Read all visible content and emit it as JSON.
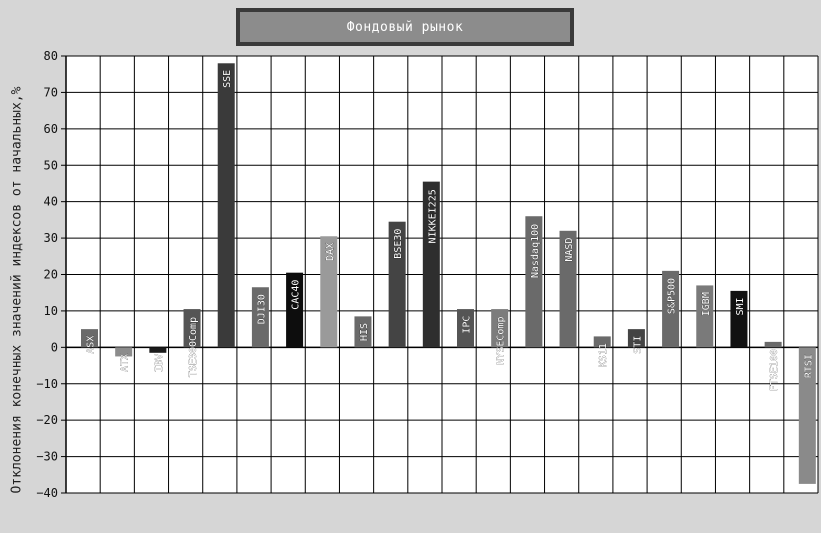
{
  "chart_data": {
    "type": "bar",
    "title": "Фондовый рынок",
    "ylabel": "Отклонения конечных значений индексов от начальных,%",
    "ylim": [
      -40,
      80
    ],
    "yticks": [
      80,
      70,
      60,
      50,
      40,
      30,
      20,
      10,
      0,
      -10,
      -20,
      -30,
      -40
    ],
    "grid": true,
    "categories": [
      "ASX",
      "ATX",
      "IBV",
      "TSE300Comp",
      "SSE",
      "DJI30",
      "CAC40",
      "DAX",
      "HIS",
      "BSE30",
      "NIKKEI225",
      "IPC",
      "NYSEComp",
      "Nasdaq100",
      "NASD",
      "KS11",
      "STI",
      "S&P500",
      "IGBM",
      "SMI",
      "FTSE100",
      "RTSI"
    ],
    "values": [
      5,
      -2.5,
      -1.5,
      10.5,
      78,
      16.5,
      20.5,
      30.5,
      8.5,
      34.5,
      45.5,
      10.5,
      10.5,
      36,
      32,
      3,
      5,
      21,
      17,
      15.5,
      1.5,
      -37.5
    ],
    "colors": [
      "#6a6a6a",
      "#8c8c8c",
      "#1a1a1a",
      "#555555",
      "#3a3a3a",
      "#6a6a6a",
      "#0d0d0d",
      "#9a9a9a",
      "#6a6a6a",
      "#444444",
      "#2e2e2e",
      "#555555",
      "#7c7c7c",
      "#6a6a6a",
      "#6a6a6a",
      "#6a6a6a",
      "#444444",
      "#6a6a6a",
      "#7a7a7a",
      "#111111",
      "#6a6a6a",
      "#8a8a8a"
    ]
  }
}
